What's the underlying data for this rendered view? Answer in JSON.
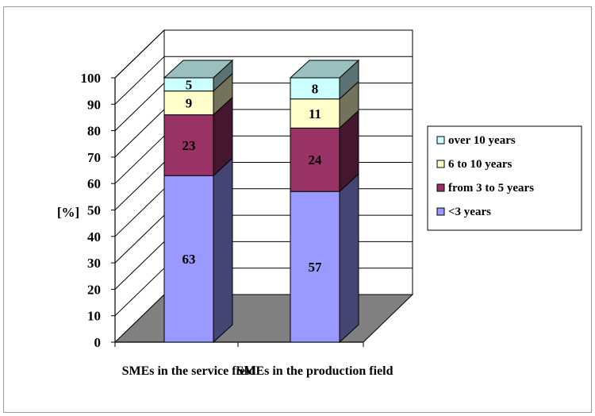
{
  "chart_data": {
    "type": "bar",
    "stacked": true,
    "three_d": true,
    "ylabel": "[%]",
    "ylim": [
      0,
      100
    ],
    "yticks": [
      0,
      10,
      20,
      30,
      40,
      50,
      60,
      70,
      80,
      90,
      100
    ],
    "categories": [
      "SMEs in the service field",
      "SMEs in the production field"
    ],
    "series": [
      {
        "name": "<3 years",
        "values": [
          63,
          57
        ],
        "color": "#9999ff"
      },
      {
        "name": "from 3 to 5 years",
        "values": [
          23,
          24
        ],
        "color": "#993366"
      },
      {
        "name": "6 to 10 years",
        "values": [
          9,
          11
        ],
        "color": "#ffffcc"
      },
      {
        "name": "over 10 years",
        "values": [
          5,
          8
        ],
        "color": "#ccffff"
      }
    ],
    "legend": {
      "position": "right",
      "order": [
        "over 10 years",
        "6 to 10 years",
        "from 3 to 5 years",
        "<3 years"
      ]
    },
    "grid": true,
    "floor_color": "#808080"
  }
}
